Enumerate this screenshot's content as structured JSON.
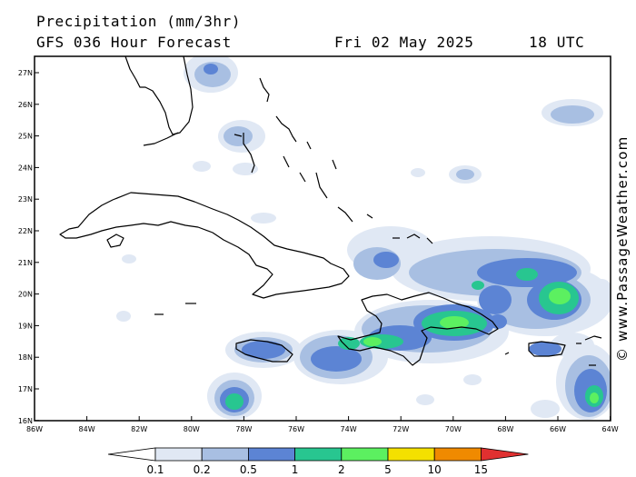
{
  "header": {
    "title": "Precipitation (mm/3hr)",
    "forecast": "GFS 036 Hour Forecast",
    "date": "Fri 02 May 2025",
    "time": "18 UTC"
  },
  "credit": "© www.PassageWeather.com",
  "axes": {
    "y_labels": [
      "27N",
      "26N",
      "25N",
      "24N",
      "23N",
      "22N",
      "21N",
      "20N",
      "19N",
      "18N",
      "17N",
      "16N"
    ],
    "x_labels": [
      "86W",
      "84W",
      "82W",
      "80W",
      "78W",
      "76W",
      "74W",
      "72W",
      "70W",
      "68W",
      "66W",
      "64W"
    ]
  },
  "colorbar": {
    "labels": [
      "0.1",
      "0.2",
      "0.5",
      "1",
      "2",
      "5",
      "10",
      "15"
    ],
    "colors": [
      "#ffffff",
      "#e0e8f4",
      "#a8bfe2",
      "#5c84d4",
      "#28c690",
      "#5cf060",
      "#f4e000",
      "#f08a00",
      "#e03030"
    ]
  },
  "colors": {
    "light": "#e0e8f4",
    "pale": "#a8bfe2",
    "blue": "#5c84d4",
    "teal": "#28c690",
    "green": "#5cf060"
  }
}
